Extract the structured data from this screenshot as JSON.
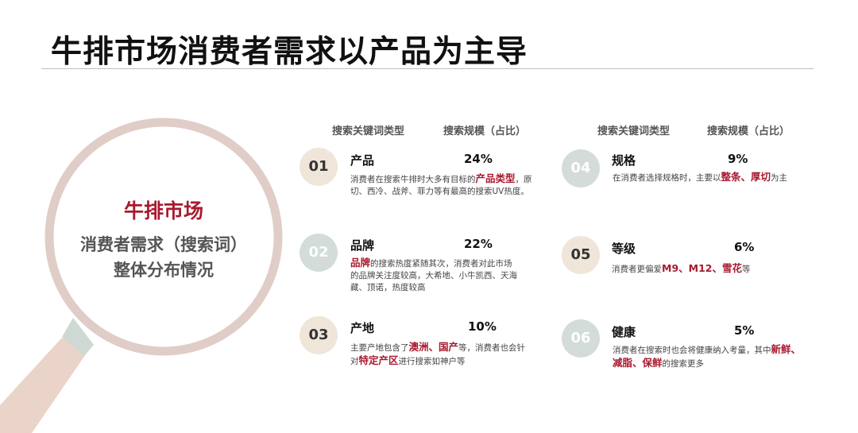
{
  "title": "牛排市场消费者需求以产品为主导",
  "lens": {
    "line1": "牛排市场",
    "line2": "消费者需求（搜索词）",
    "line3": "整体分布情况"
  },
  "headers": {
    "left_type": "搜索关键词类型",
    "left_scale": "搜索规模（占比）",
    "right_type": "搜索关键词类型",
    "right_scale": "搜索规模（占比）"
  },
  "items": [
    {
      "num": "01",
      "category": "产品",
      "percent": "24%",
      "desc": [
        {
          "t": "消费者在搜索牛排时大多有目标的"
        },
        {
          "t": "产品类型",
          "hl": true
        },
        {
          "t": "，原切、西冷、战斧、菲力等有最高的搜索UV热度。"
        }
      ]
    },
    {
      "num": "02",
      "category": "品牌",
      "percent": "22%",
      "desc": [
        {
          "t": "品牌",
          "hl": true
        },
        {
          "t": "的搜索热度紧随其次，消费者对此市场的品牌关注度较高，大希地、小牛凯西、天海藏、顶诺，热度较高"
        }
      ]
    },
    {
      "num": "03",
      "category": "产地",
      "percent": "10%",
      "desc": [
        {
          "t": "主要产地包含了"
        },
        {
          "t": "澳洲、国产",
          "hl": true
        },
        {
          "t": "等，消费者也会针对"
        },
        {
          "t": "特定产区",
          "hl": true
        },
        {
          "t": "进行搜索如神户等"
        }
      ]
    },
    {
      "num": "04",
      "category": "规格",
      "percent": "9%",
      "desc": [
        {
          "t": "在消费者选择规格时，主要以"
        },
        {
          "t": "整条、厚切",
          "hl": true
        },
        {
          "t": "为主"
        }
      ]
    },
    {
      "num": "05",
      "category": "等级",
      "percent": "6%",
      "desc": [
        {
          "t": "消费者更偏爱"
        },
        {
          "t": "M9、M12、雪花",
          "hl": true
        },
        {
          "t": "等"
        }
      ]
    },
    {
      "num": "06",
      "category": "健康",
      "percent": "5%",
      "desc": [
        {
          "t": "消费者在搜索时也会将健康纳入考量，其中"
        },
        {
          "t": "新鲜、减脂、保鲜",
          "hl": true
        },
        {
          "t": "的搜索更多"
        }
      ]
    }
  ]
}
